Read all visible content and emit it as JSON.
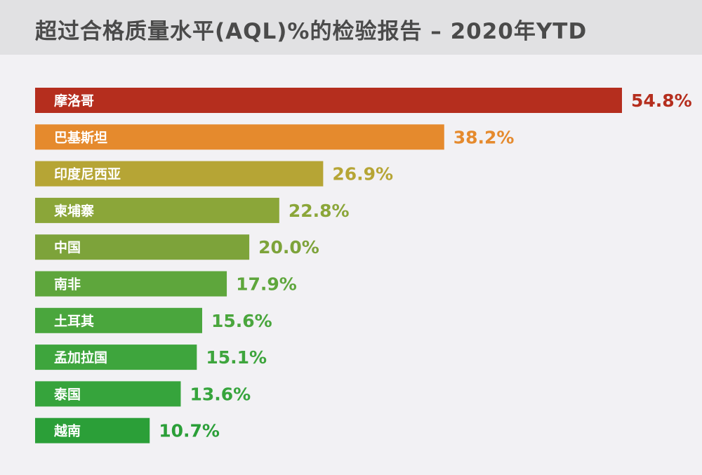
{
  "title": "超过合格质量水平(AQL)%的检验报告 – 2020年YTD",
  "chart_data": {
    "type": "bar",
    "orientation": "horizontal",
    "title": "超过合格质量水平(AQL)%的检验报告 – 2020年YTD",
    "categories": [
      "摩洛哥",
      "巴基斯坦",
      "印度尼西亚",
      "柬埔寨",
      "中国",
      "南非",
      "土耳其",
      "孟加拉国",
      "泰国",
      "越南"
    ],
    "values": [
      54.8,
      38.2,
      26.9,
      22.8,
      20.0,
      17.9,
      15.6,
      15.1,
      13.6,
      10.7
    ],
    "value_labels": [
      "54.8%",
      "38.2%",
      "26.9%",
      "22.8%",
      "20.0%",
      "17.9%",
      "15.6%",
      "15.1%",
      "13.6%",
      "10.7%"
    ],
    "colors": [
      "#b52e1e",
      "#e58a2d",
      "#b6a535",
      "#8ba639",
      "#7da33a",
      "#5ea63c",
      "#4aa63d",
      "#3ea53d",
      "#36a43c",
      "#2b9f38"
    ],
    "xlim": [
      0,
      54.8
    ],
    "grid": false,
    "legend": "none",
    "xlabel": "",
    "ylabel": ""
  }
}
